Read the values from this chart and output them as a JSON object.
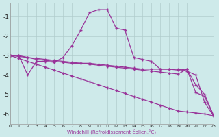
{
  "background_color": "#ceeaea",
  "line_color": "#993399",
  "xlabel": "Windchill (Refroidissement éolien,°C)",
  "xlim": [
    0,
    23
  ],
  "ylim": [
    -6.5,
    -0.3
  ],
  "yticks": [
    -6,
    -5,
    -4,
    -3,
    -2,
    -1
  ],
  "xtick_labels": [
    "0",
    "1",
    "2",
    "3",
    "4",
    "5",
    "6",
    "7",
    "8",
    "9",
    "10",
    "11",
    "12",
    "13",
    "14",
    "15",
    "16",
    "17",
    "18",
    "19",
    "20",
    "21",
    "22",
    "23"
  ],
  "lines": [
    {
      "x": [
        0,
        1,
        2,
        3,
        4,
        5,
        6,
        7,
        8,
        9,
        10,
        11,
        12,
        13,
        14,
        15,
        16,
        17,
        18,
        19,
        20,
        21,
        22,
        23
      ],
      "y": [
        -3.0,
        -3.15,
        -3.3,
        -3.45,
        -3.6,
        -3.75,
        -3.9,
        -4.05,
        -4.2,
        -4.35,
        -4.5,
        -4.65,
        -4.8,
        -4.95,
        -5.1,
        -5.25,
        -5.4,
        -5.55,
        -5.7,
        -5.85,
        -5.9,
        -5.95,
        -6.0,
        -6.1
      ]
    },
    {
      "x": [
        0,
        1,
        2,
        3,
        4,
        5,
        6,
        7,
        8,
        9,
        10,
        11,
        12,
        13,
        14,
        15,
        16,
        17,
        18,
        19,
        20,
        21,
        22,
        23
      ],
      "y": [
        -3.0,
        -3.05,
        -3.1,
        -3.15,
        -3.2,
        -3.25,
        -3.3,
        -3.35,
        -3.4,
        -3.45,
        -3.5,
        -3.55,
        -3.6,
        -3.65,
        -3.7,
        -3.75,
        -3.8,
        -3.85,
        -3.9,
        -3.95,
        -3.7,
        -4.9,
        -5.1,
        -6.1
      ]
    },
    {
      "x": [
        0,
        1,
        2,
        3,
        4,
        5,
        6,
        7,
        8,
        9,
        10,
        11,
        12,
        13,
        14,
        15,
        16,
        17,
        18,
        19,
        20,
        21,
        22,
        23
      ],
      "y": [
        -3.0,
        -3.0,
        -3.1,
        -3.2,
        -3.25,
        -3.3,
        -3.35,
        -3.4,
        -3.4,
        -3.4,
        -3.45,
        -3.5,
        -3.55,
        -3.6,
        -3.65,
        -3.7,
        -3.7,
        -3.7,
        -3.7,
        -3.75,
        -3.7,
        -4.5,
        -5.0,
        -6.05
      ]
    },
    {
      "x": [
        0,
        1,
        2,
        3,
        4,
        5,
        6,
        7,
        8,
        9,
        10,
        11,
        12,
        13,
        14,
        15,
        16,
        17,
        18,
        19,
        20,
        21,
        22,
        23
      ],
      "y": [
        -3.0,
        -3.0,
        -4.0,
        -3.3,
        -3.3,
        -3.35,
        -3.1,
        -2.5,
        -1.7,
        -0.8,
        -0.65,
        -0.65,
        -1.6,
        -1.7,
        -3.1,
        -3.2,
        -3.3,
        -3.7,
        -3.7,
        -3.7,
        -3.8,
        -4.0,
        -5.4,
        -6.1
      ]
    }
  ]
}
